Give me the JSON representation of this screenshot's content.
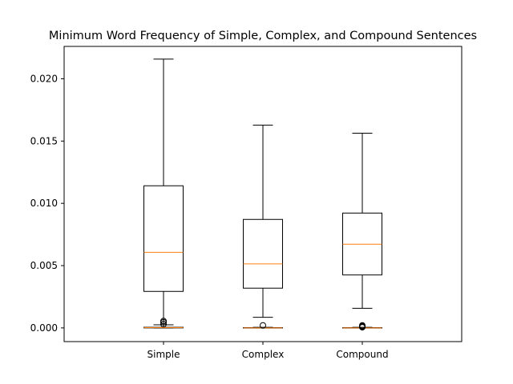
{
  "chart_data": {
    "type": "box",
    "title": "Minimum Word Frequency of Simple, Complex, and Compound Sentences",
    "xlabel": "",
    "ylabel": "",
    "ylim": [
      -0.0011,
      0.0226
    ],
    "y_ticks": [
      0.0,
      0.005,
      0.01,
      0.015,
      0.02
    ],
    "y_tick_labels": [
      "0.000",
      "0.005",
      "0.010",
      "0.015",
      "0.020"
    ],
    "categories": [
      "Simple",
      "Complex",
      "Compound"
    ],
    "grid": false,
    "series": [
      {
        "category": "Simple",
        "box": {
          "whisker_low": 0.0,
          "q1": 0.00293,
          "median": 0.00607,
          "q3": 0.01141,
          "whisker_high": 0.02158
        },
        "flat_box": {
          "whisker_low": 0.0,
          "q1": 0.0,
          "median": 2e-05,
          "q3": 5e-05,
          "whisker_high": 0.00025
        },
        "outliers": [
          0.0003,
          0.00045,
          0.00055
        ]
      },
      {
        "category": "Complex",
        "box": {
          "whisker_low": 0.00085,
          "q1": 0.00319,
          "median": 0.00514,
          "q3": 0.00871,
          "whisker_high": 0.01628
        },
        "flat_box": {
          "whisker_low": 0.0,
          "q1": 0.0,
          "median": 0.0,
          "q3": 2e-05,
          "whisker_high": 5e-05
        },
        "outliers": [
          0.0002
        ]
      },
      {
        "category": "Compound",
        "box": {
          "whisker_low": 0.00157,
          "q1": 0.00425,
          "median": 0.00672,
          "q3": 0.00922,
          "whisker_high": 0.01563
        },
        "flat_box": {
          "whisker_low": 0.0,
          "q1": 0.0,
          "median": 0.0,
          "q3": 2e-05,
          "whisker_high": 5e-05
        },
        "outliers": [
          5e-05,
          0.0001,
          0.00015,
          0.0002
        ]
      }
    ],
    "colors": {
      "box": "#000000",
      "median": "#ff7f0e",
      "axes": "#000000",
      "background": "#ffffff"
    }
  }
}
